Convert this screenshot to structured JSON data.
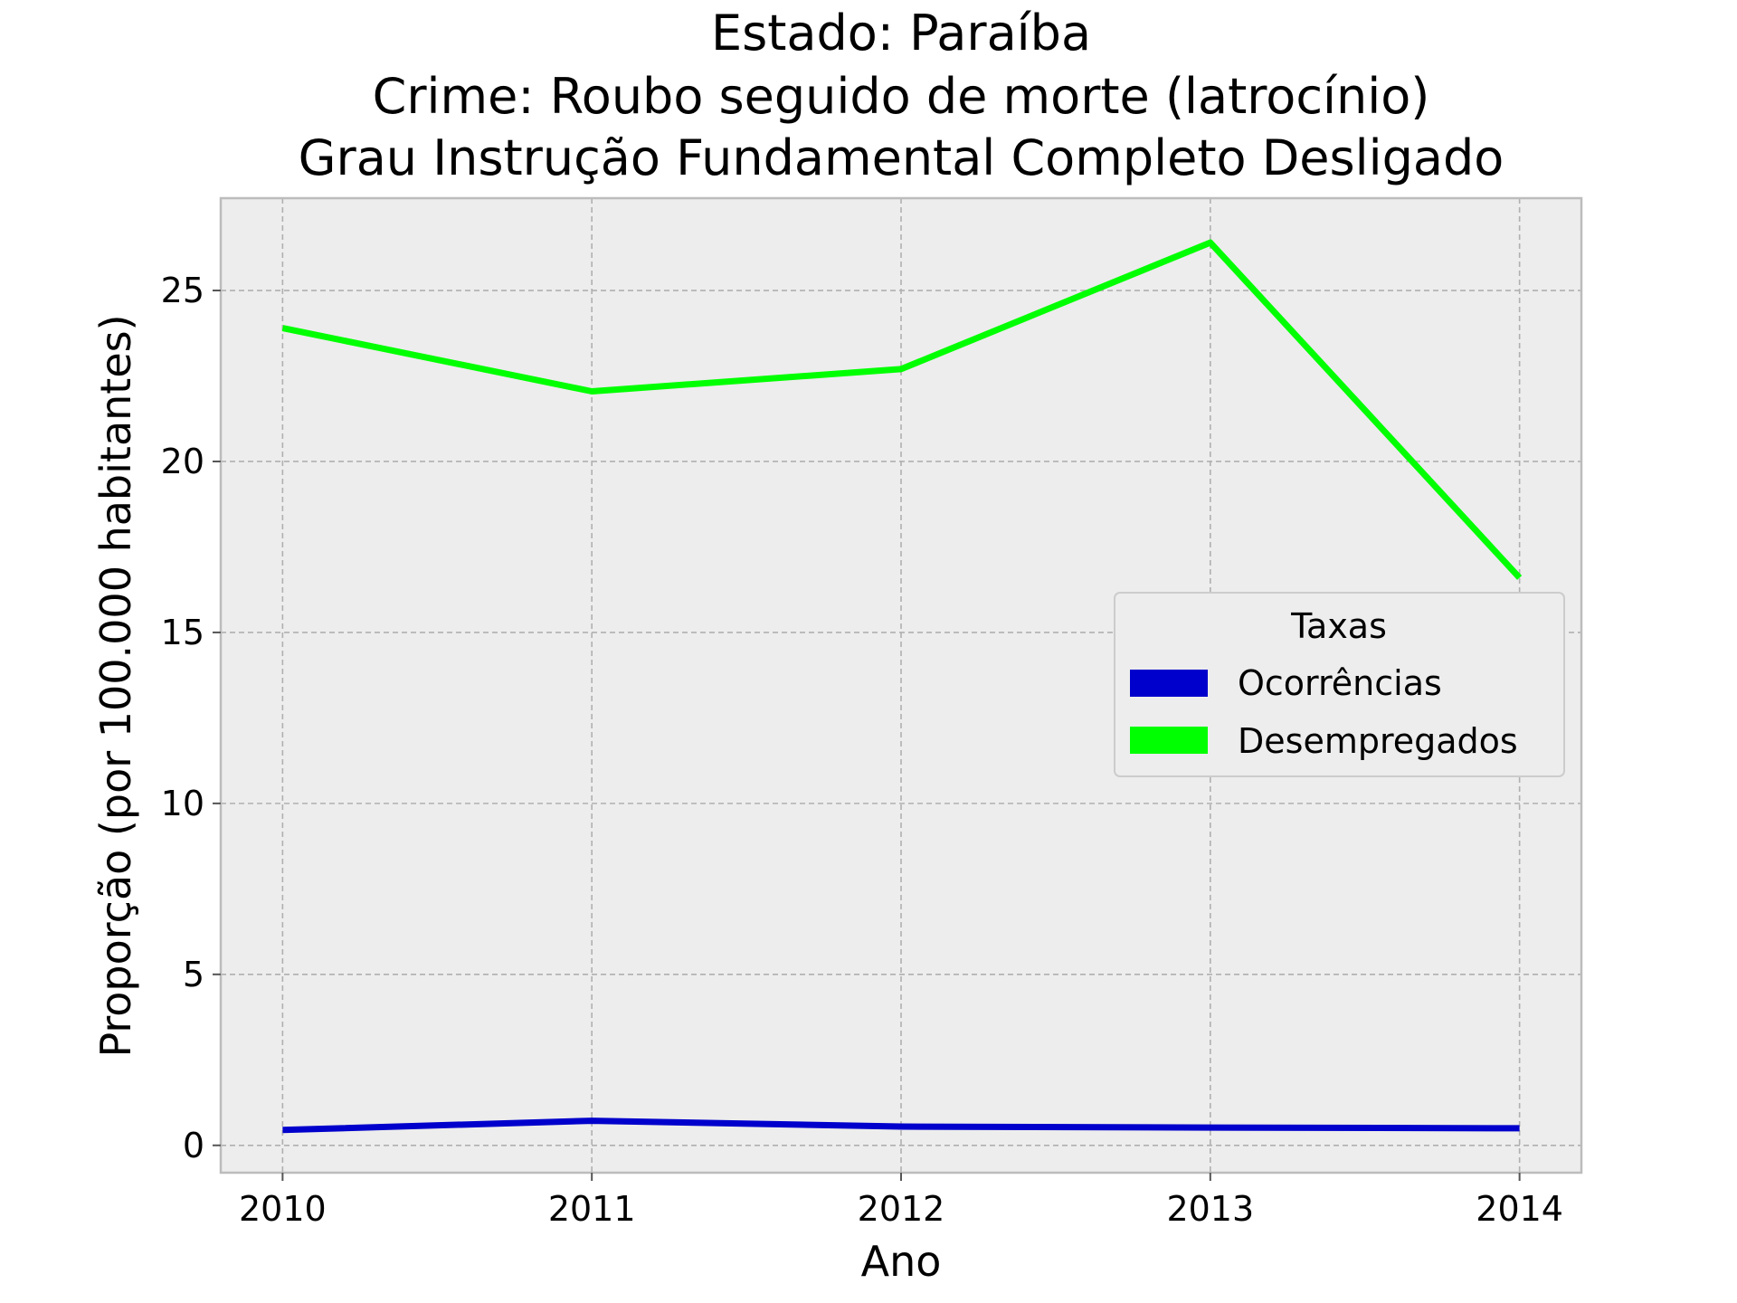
{
  "chart_data": {
    "type": "line",
    "title_lines": [
      "Estado: Paraíba",
      "Crime: Roubo seguido de morte (latrocínio)",
      "Grau Instrução  Fundamental Completo   Desligado"
    ],
    "xlabel": "Ano",
    "ylabel": "Proporção (por 100.000 habitantes)",
    "x": [
      "2010",
      "2011",
      "2012",
      "2013",
      "2014"
    ],
    "xlim": [
      2009.8,
      2014.2
    ],
    "ylim": [
      -0.8,
      27.7
    ],
    "yticks": [
      0,
      5,
      10,
      15,
      20,
      25
    ],
    "grid": true,
    "legend": {
      "title": "Taxas",
      "placement": "center-right"
    },
    "series": [
      {
        "name": "Ocorrências",
        "color": "#0000CC",
        "values": [
          0.45,
          0.72,
          0.55,
          0.52,
          0.5
        ]
      },
      {
        "name": "Desempregados",
        "color": "#00FF00",
        "values": [
          23.9,
          22.05,
          22.7,
          26.4,
          16.6
        ]
      }
    ]
  }
}
